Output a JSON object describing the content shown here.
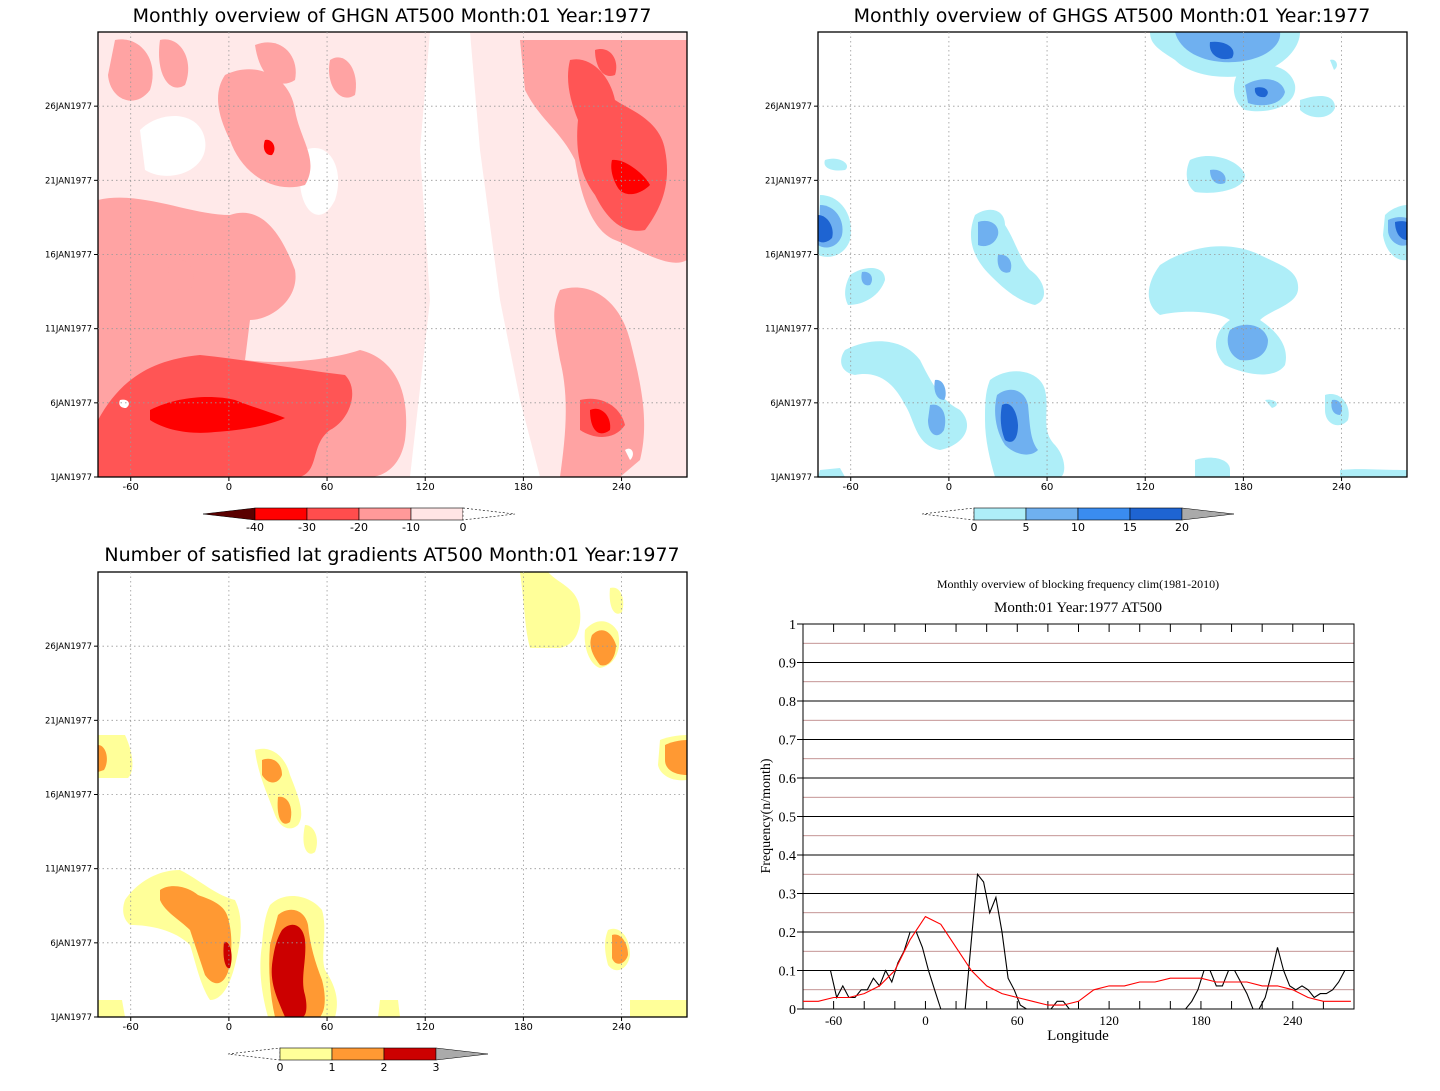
{
  "panels": [
    {
      "id": "ghgn",
      "title": "Monthly overview of GHGN AT500 Month:01 Year:1977",
      "x_ticks": [
        "-60",
        "0",
        "60",
        "120",
        "180",
        "240"
      ],
      "y_ticks": [
        "1JAN1977",
        "6JAN1977",
        "11JAN1977",
        "16JAN1977",
        "21JAN1977",
        "26JAN1977"
      ],
      "colorbar": {
        "labels": [
          "-40",
          "-30",
          "-20",
          "-10",
          "0"
        ],
        "colors": [
          "#5a0000",
          "#ff0000",
          "#ff4d4d",
          "#ff9999",
          "#ffe5e5"
        ]
      },
      "field_colors": [
        "#ffe9e9",
        "#ffa3a3",
        "#ff5555",
        "#ff0000"
      ]
    },
    {
      "id": "ghgs",
      "title": "Monthly overview of GHGS AT500 Month:01 Year:1977",
      "x_ticks": [
        "-60",
        "0",
        "60",
        "120",
        "180",
        "240"
      ],
      "y_ticks": [
        "1JAN1977",
        "6JAN1977",
        "11JAN1977",
        "16JAN1977",
        "21JAN1977",
        "26JAN1977"
      ],
      "colorbar": {
        "labels": [
          "0",
          "5",
          "10",
          "15",
          "20"
        ],
        "colors": [
          "#aeeef8",
          "#6fb0f0",
          "#3a8cf0",
          "#1e64d2",
          "#aaaaaa"
        ]
      },
      "field_colors": [
        "#aeeef8",
        "#6fb0f0",
        "#1e64d2"
      ]
    },
    {
      "id": "gradients",
      "title": "Number of satisfied lat gradients AT500 Month:01 Year:1977",
      "x_ticks": [
        "-60",
        "0",
        "60",
        "120",
        "180",
        "240"
      ],
      "y_ticks": [
        "1JAN1977",
        "6JAN1977",
        "11JAN1977",
        "16JAN1977",
        "21JAN1977",
        "26JAN1977"
      ],
      "colorbar": {
        "labels": [
          "0",
          "1",
          "2",
          "3"
        ],
        "colors": [
          "#ffff99",
          "#ff9933",
          "#cc0000",
          "#aaaaaa"
        ]
      },
      "field_colors": [
        "#ffff99",
        "#ff9933",
        "#cc0000"
      ]
    }
  ],
  "chart_data": {
    "type": "line",
    "title": "Monthly overview of blocking frequency clim(1981-2010)",
    "subtitle": "Month:01 Year:1977  AT500",
    "xlabel": "Longitude",
    "ylabel": "Frequency(n/month)",
    "xlim": [
      -80,
      280
    ],
    "ylim": [
      0,
      1
    ],
    "x_ticks": [
      -60,
      0,
      60,
      120,
      180,
      240
    ],
    "y_ticks": [
      0,
      0.1,
      0.2,
      0.3,
      0.4,
      0.5,
      0.6,
      0.7,
      0.8,
      0.9,
      1
    ],
    "series": [
      {
        "color": "#000000",
        "x": [
          -80,
          -62,
          -58,
          -54,
          -50,
          -46,
          -42,
          -38,
          -34,
          -30,
          -26,
          -22,
          -18,
          -14,
          -10,
          -6,
          -2,
          2,
          6,
          10,
          14,
          18,
          22,
          26,
          30,
          34,
          38,
          42,
          46,
          50,
          54,
          58,
          62,
          66,
          70,
          74,
          78,
          82,
          86,
          90,
          94,
          110,
          130,
          150,
          170,
          174,
          178,
          182,
          186,
          190,
          194,
          198,
          202,
          206,
          210,
          214,
          218,
          222,
          226,
          230,
          234,
          238,
          242,
          246,
          250,
          254,
          258,
          262,
          266,
          270,
          274,
          278
        ],
        "y": [
          0.1,
          0.1,
          0.03,
          0.06,
          0.03,
          0.03,
          0.05,
          0.05,
          0.08,
          0.06,
          0.1,
          0.07,
          0.12,
          0.15,
          0.2,
          0.2,
          0.16,
          0.1,
          0.05,
          0.0,
          0.0,
          0.0,
          0.0,
          0.0,
          0.18,
          0.35,
          0.33,
          0.25,
          0.29,
          0.2,
          0.08,
          0.05,
          0.01,
          0.0,
          0.0,
          0.0,
          0.0,
          0.0,
          0.02,
          0.02,
          0.0,
          0.0,
          0.0,
          0.0,
          0.0,
          0.02,
          0.05,
          0.1,
          0.1,
          0.06,
          0.06,
          0.1,
          0.1,
          0.07,
          0.04,
          0.0,
          0.0,
          0.03,
          0.09,
          0.16,
          0.1,
          0.06,
          0.05,
          0.06,
          0.05,
          0.03,
          0.04,
          0.04,
          0.05,
          0.07,
          0.1,
          0.1
        ]
      },
      {
        "color": "#ff0000",
        "x": [
          -80,
          -70,
          -60,
          -50,
          -40,
          -30,
          -20,
          -10,
          0,
          10,
          20,
          30,
          40,
          50,
          60,
          70,
          80,
          90,
          100,
          110,
          120,
          130,
          140,
          150,
          160,
          170,
          180,
          190,
          200,
          210,
          220,
          230,
          240,
          250,
          260,
          270,
          278
        ],
        "y": [
          0.02,
          0.02,
          0.03,
          0.03,
          0.04,
          0.06,
          0.1,
          0.18,
          0.24,
          0.22,
          0.16,
          0.1,
          0.06,
          0.04,
          0.03,
          0.02,
          0.01,
          0.01,
          0.02,
          0.05,
          0.06,
          0.06,
          0.07,
          0.07,
          0.08,
          0.08,
          0.08,
          0.07,
          0.07,
          0.07,
          0.06,
          0.06,
          0.05,
          0.03,
          0.02,
          0.02,
          0.02
        ]
      }
    ]
  }
}
